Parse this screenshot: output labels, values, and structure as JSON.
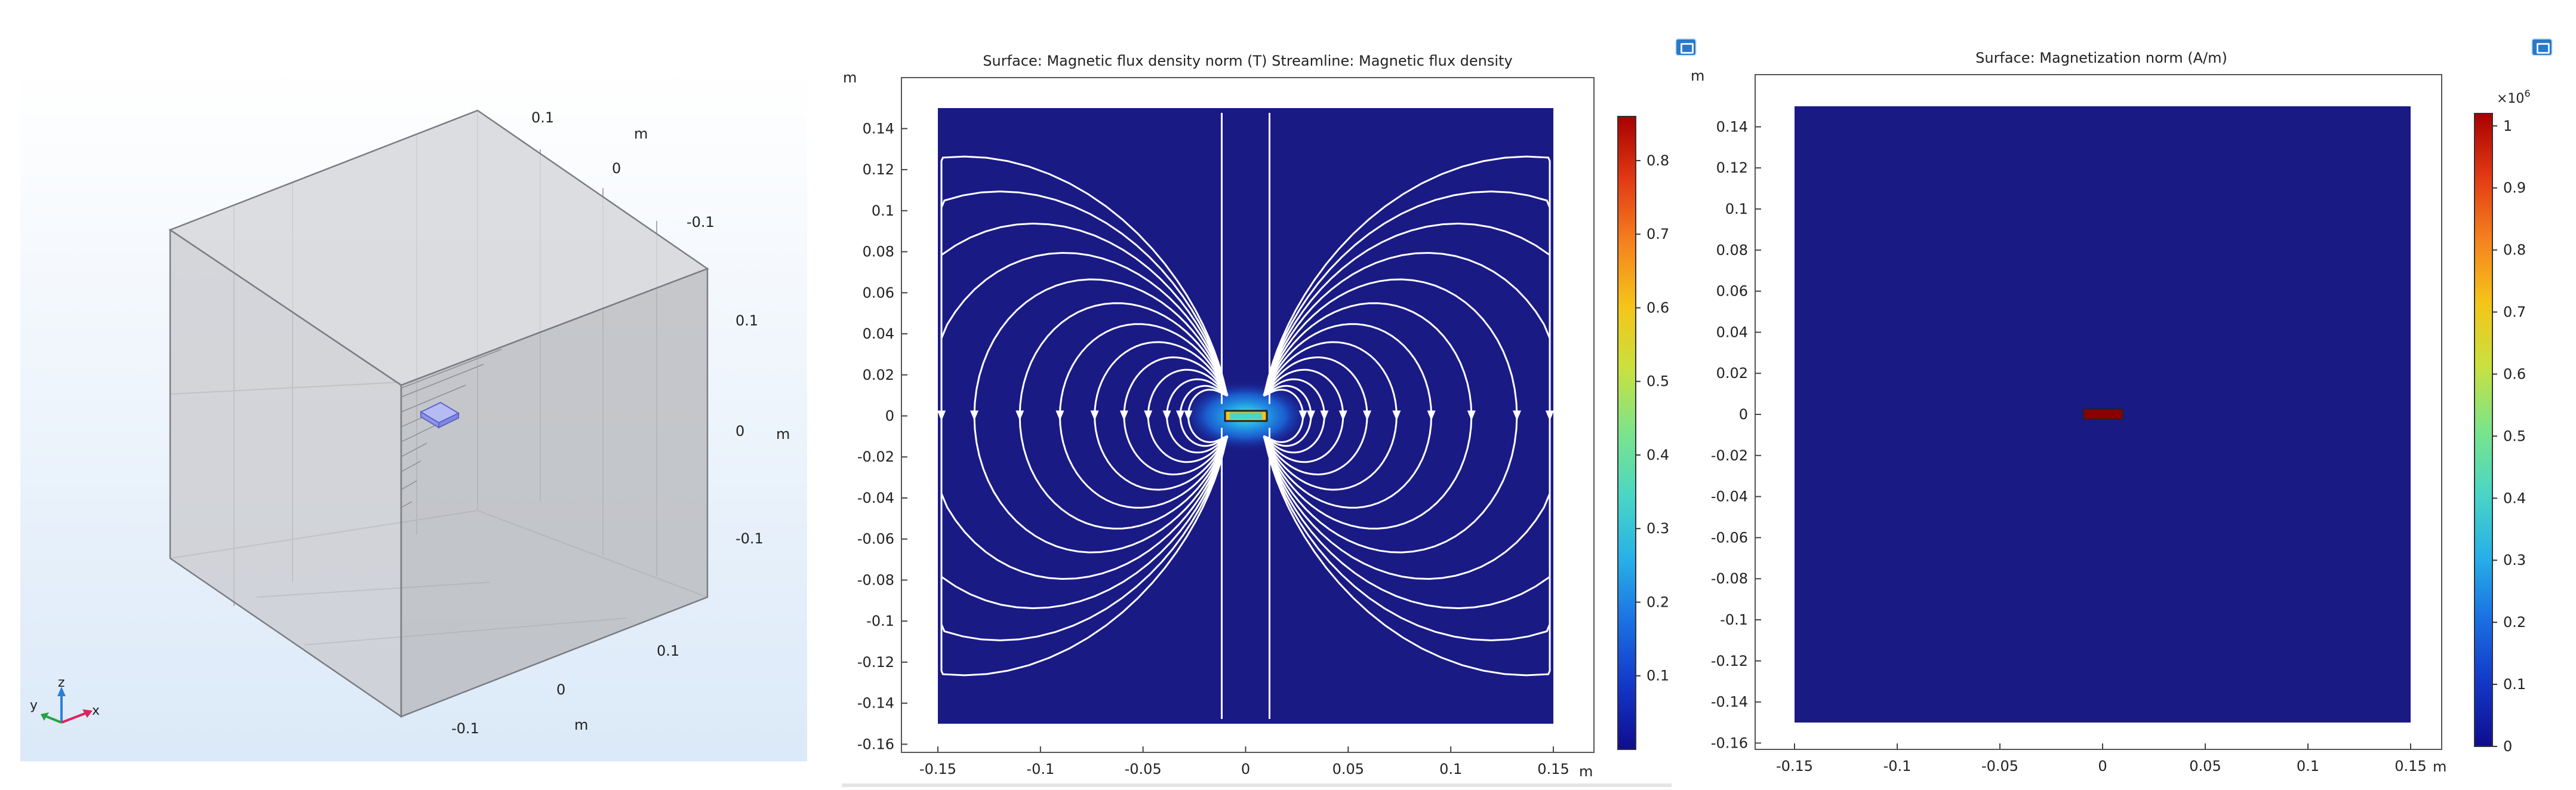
{
  "units": "m",
  "view3d": {
    "top_edge_ticks": [
      "0.1",
      "0",
      "-0.1"
    ],
    "right_edge_ticks": [
      "0.1",
      "0",
      "-0.1"
    ],
    "bottom_edge_ticks": [
      "0.1",
      "0",
      "-0.1"
    ],
    "top_unit": "m",
    "right_unit": "m",
    "bottom_unit": "m",
    "triad": {
      "x": "x",
      "y": "y",
      "z": "z"
    },
    "colors": {
      "background": "#e6f0fb",
      "box_fill": "#c8c9cc",
      "magnet": "#6f78d6"
    }
  },
  "flux_plot": {
    "title": "Surface: Magnetic flux density norm (T)  Streamline: Magnetic flux density",
    "y_unit": "m",
    "x_unit": "m",
    "x_ticks": [
      "-0.15",
      "-0.1",
      "-0.05",
      "0",
      "0.05",
      "0.1",
      "0.15"
    ],
    "y_ticks": [
      "0.14",
      "0.12",
      "0.1",
      "0.08",
      "0.06",
      "0.04",
      "0.02",
      "0",
      "-0.02",
      "-0.04",
      "-0.06",
      "-0.08",
      "-0.1",
      "-0.12",
      "-0.14",
      "-0.16"
    ],
    "colorbar_ticks": [
      "0.8",
      "0.7",
      "0.6",
      "0.5",
      "0.4",
      "0.3",
      "0.2",
      "0.1"
    ],
    "colorbar_range": [
      0,
      0.86
    ],
    "colors": {
      "field": "#1a1a85",
      "streamline": "#ffffff"
    }
  },
  "magnetization_plot": {
    "title": "Surface: Magnetization norm (A/m)",
    "y_unit": "m",
    "x_unit": "m",
    "x_ticks": [
      "-0.15",
      "-0.1",
      "-0.05",
      "0",
      "0.05",
      "0.1",
      "0.15"
    ],
    "y_ticks": [
      "0.14",
      "0.12",
      "0.1",
      "0.08",
      "0.06",
      "0.04",
      "0.02",
      "0",
      "-0.02",
      "-0.04",
      "-0.06",
      "-0.08",
      "-0.1",
      "-0.12",
      "-0.14",
      "-0.16"
    ],
    "colorbar_ticks": [
      "1",
      "0.9",
      "0.8",
      "0.7",
      "0.6",
      "0.5",
      "0.4",
      "0.3",
      "0.2",
      "0.1",
      "0"
    ],
    "colorbar_multiplier": "×10",
    "colorbar_exponent": "6",
    "colorbar_range": [
      0,
      1.02
    ],
    "colors": {
      "field": "#1a1a85",
      "magnet": "#8b0000"
    }
  },
  "colormap": [
    "#100c8f",
    "#1237c8",
    "#1b6fe3",
    "#27b0e8",
    "#4ad6c4",
    "#7be48a",
    "#c8e13f",
    "#f5c518",
    "#f5821f",
    "#e33a14",
    "#a80000"
  ]
}
